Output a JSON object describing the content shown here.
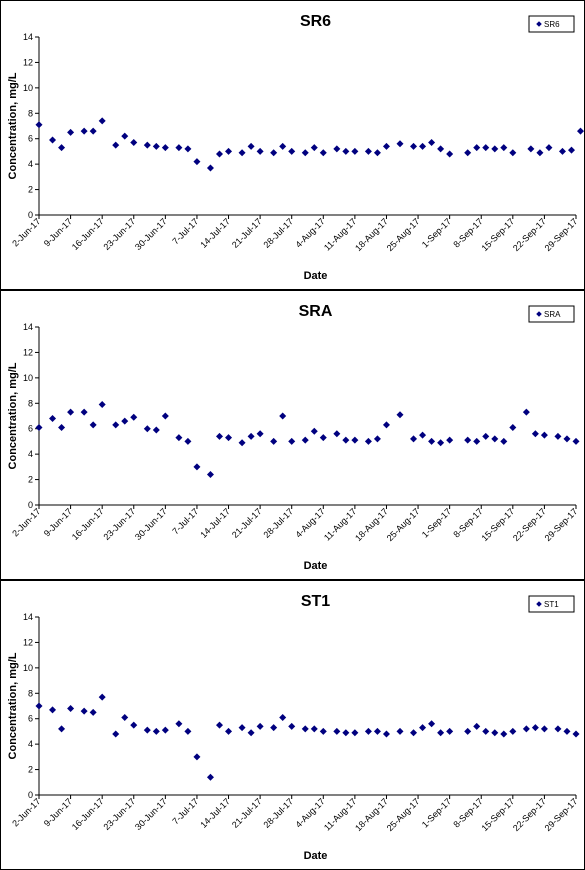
{
  "chart_data": [
    {
      "type": "scatter",
      "title": "SR6",
      "xlabel": "Date",
      "ylabel": "Concentration, mg/L",
      "ylim": [
        0,
        14
      ],
      "yticks": [
        0,
        2,
        4,
        6,
        8,
        10,
        12,
        14
      ],
      "xlim": [
        "2017-06-02",
        "2017-09-29"
      ],
      "xtick_labels": [
        "2-Jun-17",
        "9-Jun-17",
        "16-Jun-17",
        "23-Jun-17",
        "30-Jun-17",
        "7-Jul-17",
        "14-Jul-17",
        "21-Jul-17",
        "28-Jul-17",
        "4-Aug-17",
        "11-Aug-17",
        "18-Aug-17",
        "25-Aug-17",
        "1-Sep-17",
        "8-Sep-17",
        "15-Sep-17",
        "22-Sep-17",
        "29-Sep-17"
      ],
      "legend_position": "top-right",
      "color": "#00007f",
      "series": [
        {
          "name": "SR6",
          "points": [
            [
              "2017-06-02",
              7.1
            ],
            [
              "2017-06-05",
              5.9
            ],
            [
              "2017-06-07",
              5.3
            ],
            [
              "2017-06-09",
              6.5
            ],
            [
              "2017-06-12",
              6.6
            ],
            [
              "2017-06-14",
              6.6
            ],
            [
              "2017-06-16",
              7.4
            ],
            [
              "2017-06-19",
              5.5
            ],
            [
              "2017-06-21",
              6.2
            ],
            [
              "2017-06-23",
              5.7
            ],
            [
              "2017-06-26",
              5.5
            ],
            [
              "2017-06-28",
              5.4
            ],
            [
              "2017-06-30",
              5.3
            ],
            [
              "2017-07-03",
              5.3
            ],
            [
              "2017-07-05",
              5.2
            ],
            [
              "2017-07-07",
              4.2
            ],
            [
              "2017-07-10",
              3.7
            ],
            [
              "2017-07-12",
              4.8
            ],
            [
              "2017-07-14",
              5.0
            ],
            [
              "2017-07-17",
              4.9
            ],
            [
              "2017-07-19",
              5.4
            ],
            [
              "2017-07-21",
              5.0
            ],
            [
              "2017-07-24",
              4.9
            ],
            [
              "2017-07-26",
              5.4
            ],
            [
              "2017-07-28",
              5.0
            ],
            [
              "2017-07-31",
              4.9
            ],
            [
              "2017-08-02",
              5.3
            ],
            [
              "2017-08-04",
              4.9
            ],
            [
              "2017-08-07",
              5.2
            ],
            [
              "2017-08-09",
              5.0
            ],
            [
              "2017-08-11",
              5.0
            ],
            [
              "2017-08-14",
              5.0
            ],
            [
              "2017-08-16",
              4.9
            ],
            [
              "2017-08-18",
              5.4
            ],
            [
              "2017-08-21",
              5.6
            ],
            [
              "2017-08-24",
              5.4
            ],
            [
              "2017-08-26",
              5.4
            ],
            [
              "2017-08-28",
              5.7
            ],
            [
              "2017-08-30",
              5.2
            ],
            [
              "2017-09-01",
              4.8
            ],
            [
              "2017-09-05",
              4.9
            ],
            [
              "2017-09-07",
              5.3
            ],
            [
              "2017-09-09",
              5.3
            ],
            [
              "2017-09-11",
              5.2
            ],
            [
              "2017-09-13",
              5.3
            ],
            [
              "2017-09-15",
              4.9
            ],
            [
              "2017-09-19",
              5.2
            ],
            [
              "2017-09-21",
              4.9
            ],
            [
              "2017-09-23",
              5.3
            ],
            [
              "2017-09-26",
              5.0
            ],
            [
              "2017-09-28",
              5.1
            ],
            [
              "2017-09-30",
              6.6
            ]
          ]
        }
      ]
    },
    {
      "type": "scatter",
      "title": "SRA",
      "xlabel": "Date",
      "ylabel": "Concentration, mg/L",
      "ylim": [
        0,
        14
      ],
      "yticks": [
        0,
        2,
        4,
        6,
        8,
        10,
        12,
        14
      ],
      "xlim": [
        "2017-06-02",
        "2017-09-29"
      ],
      "xtick_labels": [
        "2-Jun-17",
        "9-Jun-17",
        "16-Jun-17",
        "23-Jun-17",
        "30-Jun-17",
        "7-Jul-17",
        "14-Jul-17",
        "21-Jul-17",
        "28-Jul-17",
        "4-Aug-17",
        "11-Aug-17",
        "18-Aug-17",
        "25-Aug-17",
        "1-Sep-17",
        "8-Sep-17",
        "15-Sep-17",
        "22-Sep-17",
        "29-Sep-17"
      ],
      "legend_position": "top-right",
      "color": "#00007f",
      "series": [
        {
          "name": "SRA",
          "points": [
            [
              "2017-06-02",
              6.1
            ],
            [
              "2017-06-05",
              6.8
            ],
            [
              "2017-06-07",
              6.1
            ],
            [
              "2017-06-09",
              7.3
            ],
            [
              "2017-06-12",
              7.3
            ],
            [
              "2017-06-14",
              6.3
            ],
            [
              "2017-06-16",
              7.9
            ],
            [
              "2017-06-19",
              6.3
            ],
            [
              "2017-06-21",
              6.6
            ],
            [
              "2017-06-23",
              6.9
            ],
            [
              "2017-06-26",
              6.0
            ],
            [
              "2017-06-28",
              5.9
            ],
            [
              "2017-06-30",
              7.0
            ],
            [
              "2017-07-03",
              5.3
            ],
            [
              "2017-07-05",
              5.0
            ],
            [
              "2017-07-07",
              3.0
            ],
            [
              "2017-07-10",
              2.4
            ],
            [
              "2017-07-12",
              5.4
            ],
            [
              "2017-07-14",
              5.3
            ],
            [
              "2017-07-17",
              4.9
            ],
            [
              "2017-07-19",
              5.4
            ],
            [
              "2017-07-21",
              5.6
            ],
            [
              "2017-07-24",
              5.0
            ],
            [
              "2017-07-26",
              7.0
            ],
            [
              "2017-07-28",
              5.0
            ],
            [
              "2017-07-31",
              5.1
            ],
            [
              "2017-08-02",
              5.8
            ],
            [
              "2017-08-04",
              5.3
            ],
            [
              "2017-08-07",
              5.6
            ],
            [
              "2017-08-09",
              5.1
            ],
            [
              "2017-08-11",
              5.1
            ],
            [
              "2017-08-14",
              5.0
            ],
            [
              "2017-08-16",
              5.2
            ],
            [
              "2017-08-18",
              6.3
            ],
            [
              "2017-08-21",
              7.1
            ],
            [
              "2017-08-24",
              5.2
            ],
            [
              "2017-08-26",
              5.5
            ],
            [
              "2017-08-28",
              5.0
            ],
            [
              "2017-08-30",
              4.9
            ],
            [
              "2017-09-01",
              5.1
            ],
            [
              "2017-09-05",
              5.1
            ],
            [
              "2017-09-07",
              5.0
            ],
            [
              "2017-09-09",
              5.4
            ],
            [
              "2017-09-11",
              5.2
            ],
            [
              "2017-09-13",
              5.0
            ],
            [
              "2017-09-15",
              6.1
            ],
            [
              "2017-09-18",
              7.3
            ],
            [
              "2017-09-20",
              5.6
            ],
            [
              "2017-09-22",
              5.5
            ],
            [
              "2017-09-25",
              5.4
            ],
            [
              "2017-09-27",
              5.2
            ],
            [
              "2017-09-29",
              5.0
            ]
          ]
        }
      ]
    },
    {
      "type": "scatter",
      "title": "ST1",
      "xlabel": "Date",
      "ylabel": "Concentration, mg/L",
      "ylim": [
        0,
        14
      ],
      "yticks": [
        0,
        2,
        4,
        6,
        8,
        10,
        12,
        14
      ],
      "xlim": [
        "2017-06-02",
        "2017-09-29"
      ],
      "xtick_labels": [
        "2-Jun-17",
        "9-Jun-17",
        "16-Jun-17",
        "23-Jun-17",
        "30-Jun-17",
        "7-Jul-17",
        "14-Jul-17",
        "21-Jul-17",
        "28-Jul-17",
        "4-Aug-17",
        "11-Aug-17",
        "18-Aug-17",
        "25-Aug-17",
        "1-Sep-17",
        "8-Sep-17",
        "15-Sep-17",
        "22-Sep-17",
        "29-Sep-17"
      ],
      "legend_position": "top-right",
      "color": "#00007f",
      "series": [
        {
          "name": "ST1",
          "points": [
            [
              "2017-06-02",
              7.0
            ],
            [
              "2017-06-05",
              6.7
            ],
            [
              "2017-06-07",
              5.2
            ],
            [
              "2017-06-09",
              6.8
            ],
            [
              "2017-06-12",
              6.6
            ],
            [
              "2017-06-14",
              6.5
            ],
            [
              "2017-06-16",
              7.7
            ],
            [
              "2017-06-19",
              4.8
            ],
            [
              "2017-06-21",
              6.1
            ],
            [
              "2017-06-23",
              5.5
            ],
            [
              "2017-06-26",
              5.1
            ],
            [
              "2017-06-28",
              5.0
            ],
            [
              "2017-06-30",
              5.1
            ],
            [
              "2017-07-03",
              5.6
            ],
            [
              "2017-07-05",
              5.0
            ],
            [
              "2017-07-07",
              3.0
            ],
            [
              "2017-07-10",
              1.4
            ],
            [
              "2017-07-12",
              5.5
            ],
            [
              "2017-07-14",
              5.0
            ],
            [
              "2017-07-17",
              5.3
            ],
            [
              "2017-07-19",
              4.9
            ],
            [
              "2017-07-21",
              5.4
            ],
            [
              "2017-07-24",
              5.3
            ],
            [
              "2017-07-26",
              6.1
            ],
            [
              "2017-07-28",
              5.4
            ],
            [
              "2017-07-31",
              5.2
            ],
            [
              "2017-08-02",
              5.2
            ],
            [
              "2017-08-04",
              5.0
            ],
            [
              "2017-08-07",
              5.0
            ],
            [
              "2017-08-09",
              4.9
            ],
            [
              "2017-08-11",
              4.9
            ],
            [
              "2017-08-14",
              5.0
            ],
            [
              "2017-08-16",
              5.0
            ],
            [
              "2017-08-18",
              4.8
            ],
            [
              "2017-08-21",
              5.0
            ],
            [
              "2017-08-24",
              4.9
            ],
            [
              "2017-08-26",
              5.3
            ],
            [
              "2017-08-28",
              5.6
            ],
            [
              "2017-08-30",
              4.9
            ],
            [
              "2017-09-01",
              5.0
            ],
            [
              "2017-09-05",
              5.0
            ],
            [
              "2017-09-07",
              5.4
            ],
            [
              "2017-09-09",
              5.0
            ],
            [
              "2017-09-11",
              4.9
            ],
            [
              "2017-09-13",
              4.8
            ],
            [
              "2017-09-15",
              5.0
            ],
            [
              "2017-09-18",
              5.2
            ],
            [
              "2017-09-20",
              5.3
            ],
            [
              "2017-09-22",
              5.2
            ],
            [
              "2017-09-25",
              5.2
            ],
            [
              "2017-09-27",
              5.0
            ],
            [
              "2017-09-29",
              4.8
            ]
          ]
        }
      ]
    }
  ]
}
